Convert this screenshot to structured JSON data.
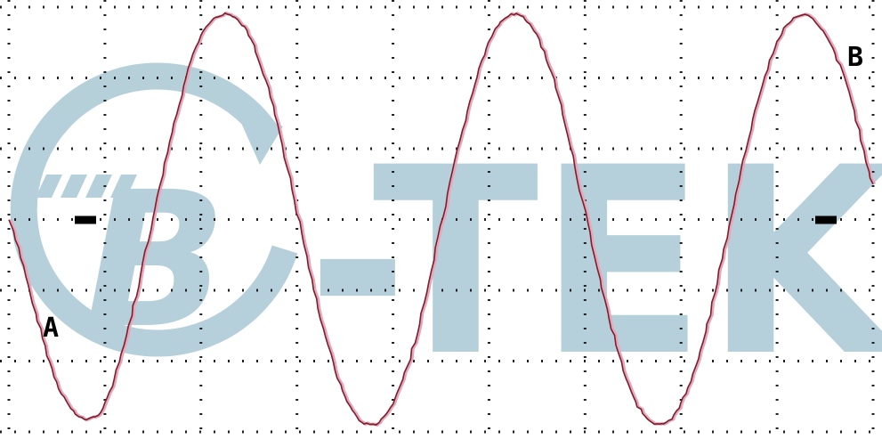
{
  "chart_data": {
    "type": "line",
    "title": "",
    "xlabel": "",
    "ylabel": "",
    "grid": true,
    "grid_divisions": {
      "x": 9,
      "y": 6
    },
    "xlim": [
      0,
      9
    ],
    "ylim": [
      -3,
      3
    ],
    "series": [
      {
        "x": [
          0,
          0.25,
          0.5,
          0.75,
          1.0,
          1.25,
          1.5,
          1.75,
          2.0,
          2.25,
          2.5,
          2.75,
          3.0,
          3.25,
          3.5,
          3.75,
          4.0,
          4.25,
          4.5,
          4.75,
          5.0,
          5.25,
          5.5,
          5.75,
          6.0,
          6.25,
          6.5,
          6.75,
          7.0,
          7.25,
          7.5,
          7.75,
          8.0,
          8.25,
          8.5,
          8.75,
          9.0
        ],
        "values": [
          0.0,
          -1.2,
          -2.3,
          -2.8,
          -2.6,
          -1.5,
          0.0,
          1.5,
          2.6,
          2.9,
          2.6,
          1.6,
          0.1,
          -1.4,
          -2.5,
          -2.9,
          -2.6,
          -1.6,
          -0.1,
          1.4,
          2.5,
          2.9,
          2.6,
          1.6,
          0.1,
          -1.4,
          -2.5,
          -2.9,
          -2.6,
          -1.6,
          -0.1,
          1.4,
          2.5,
          2.9,
          2.6,
          1.8,
          0.5
        ]
      }
    ],
    "annotations": [
      "A",
      "B"
    ],
    "colors": {
      "trace": "#7a1f2e",
      "trace_shadow": "#e7a7b8",
      "grid": "#222222",
      "watermark": "#a9c8d4",
      "marker": "#000000"
    }
  },
  "watermark": {
    "text": "-TEK",
    "logo_letter": "B"
  }
}
